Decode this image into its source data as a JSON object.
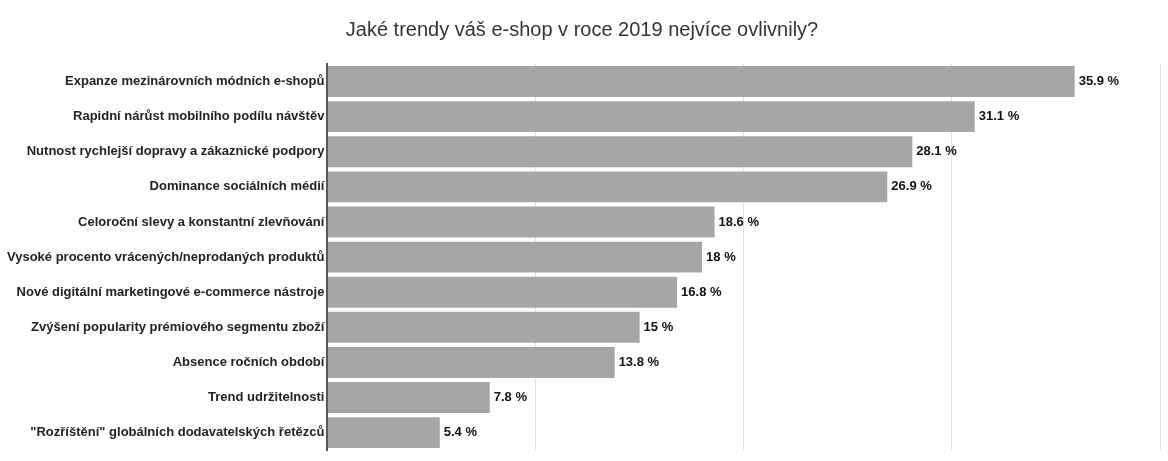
{
  "chart_data": {
    "type": "bar",
    "orientation": "horizontal",
    "title": "Jaké trendy váš e-shop v roce 2019 nejvíce ovlivnily?",
    "categories": [
      "Expanze mezinárovních módních e-shopů",
      "Rapidní nárůst mobilního podílu návštěv",
      "Nutnost rychlejší dopravy a zákaznické podpory",
      "Dominance sociálních médií",
      "Celoroční slevy a konstantní zlevňování",
      "Vysoké procento vrácených/neprodaných produktů",
      "Nové digitální marketingové e-commerce nástroje",
      "Zvýšení popularity prémiového segmentu zboží",
      "Absence ročních období",
      "Trend udržitelnosti",
      "\"Rozříštění\" globálních dodavatelských řetězců"
    ],
    "values": [
      35.9,
      31.1,
      28.1,
      26.9,
      18.6,
      18,
      16.8,
      15,
      13.8,
      7.8,
      5.4
    ],
    "value_labels": [
      "35.9 %",
      "31.1 %",
      "28.1 %",
      "26.9 %",
      "18.6 %",
      "18 %",
      "16.8 %",
      "15 %",
      "13.8 %",
      "7.8 %",
      "5.4 %"
    ],
    "color": "#a6a6a6",
    "xlim": [
      0,
      40
    ],
    "xticks": [
      {
        "value": 0,
        "label": null
      },
      {
        "value": 10,
        "label": null
      },
      {
        "value": 20,
        "label": null
      },
      {
        "value": 30,
        "label": null
      },
      {
        "value": 40,
        "label": null
      }
    ],
    "grid": "x",
    "tick_labels": "y"
  }
}
